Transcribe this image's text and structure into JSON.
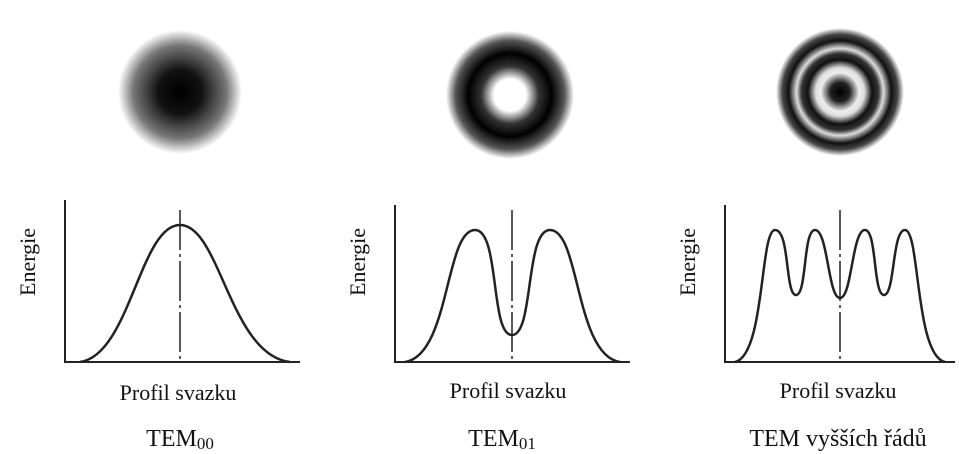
{
  "panels": [
    {
      "y_label": "Energie",
      "x_label": "Profil svazku",
      "caption": {
        "text": "TEM",
        "subscript": "00"
      }
    },
    {
      "y_label": "Energie",
      "x_label": "Profil svazku",
      "caption": {
        "text": "TEM",
        "subscript": "01"
      }
    },
    {
      "y_label": "Energie",
      "x_label": "Profil svazku",
      "caption": {
        "text": "TEM vyšších řádů"
      }
    }
  ]
}
